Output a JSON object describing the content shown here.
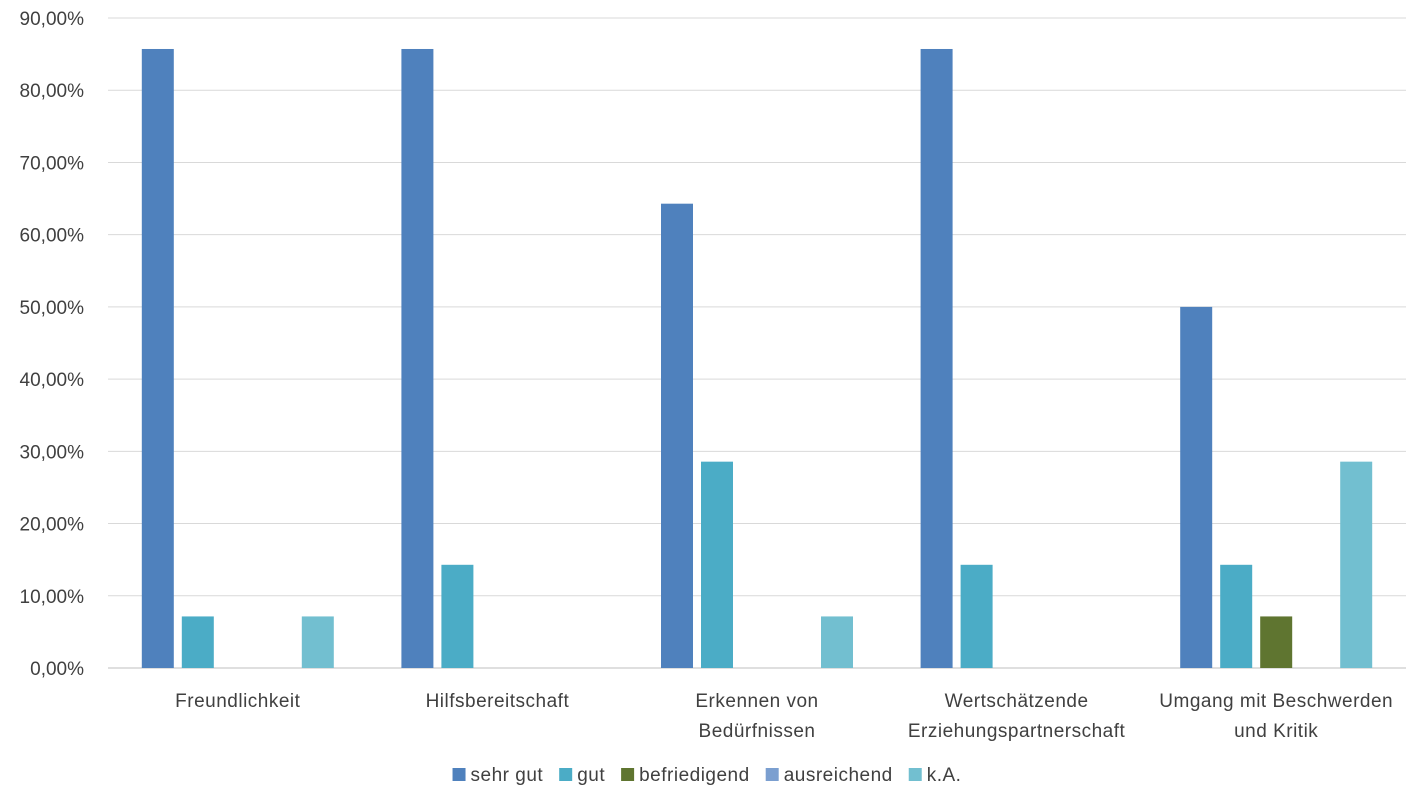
{
  "chart_data": {
    "type": "bar",
    "title": "",
    "xlabel": "",
    "ylabel": "",
    "ylim": [
      0,
      90
    ],
    "y_ticks": [
      "0,00%",
      "10,00%",
      "20,00%",
      "30,00%",
      "40,00%",
      "50,00%",
      "60,00%",
      "70,00%",
      "80,00%",
      "90,00%"
    ],
    "y_tick_values": [
      0,
      10,
      20,
      30,
      40,
      50,
      60,
      70,
      80,
      90
    ],
    "grid": true,
    "legend_position": "bottom",
    "categories": [
      [
        "Freundlichkeit"
      ],
      [
        "Hilfsbereitschaft"
      ],
      [
        "Erkennen von",
        "Bedürfnissen"
      ],
      [
        "Wertschätzende",
        "Erziehungspartnerschaft"
      ],
      [
        "Umgang mit Beschwerden",
        "und Kritik"
      ]
    ],
    "series": [
      {
        "name": "sehr gut",
        "color": "#4f81bd",
        "values": [
          85.71,
          85.71,
          64.29,
          85.71,
          50.0
        ]
      },
      {
        "name": "gut",
        "color": "#4bacc6",
        "values": [
          7.14,
          14.29,
          28.57,
          14.29,
          14.29
        ]
      },
      {
        "name": "befriedigend",
        "color": "#5f7530",
        "values": [
          0,
          0,
          0,
          0,
          7.14
        ]
      },
      {
        "name": "ausreichend",
        "color": "#7b9fd0",
        "values": [
          0,
          0,
          0,
          0,
          0
        ]
      },
      {
        "name": "k.A.",
        "color": "#72bfd0",
        "values": [
          7.14,
          0,
          7.14,
          0,
          28.57
        ]
      }
    ]
  }
}
